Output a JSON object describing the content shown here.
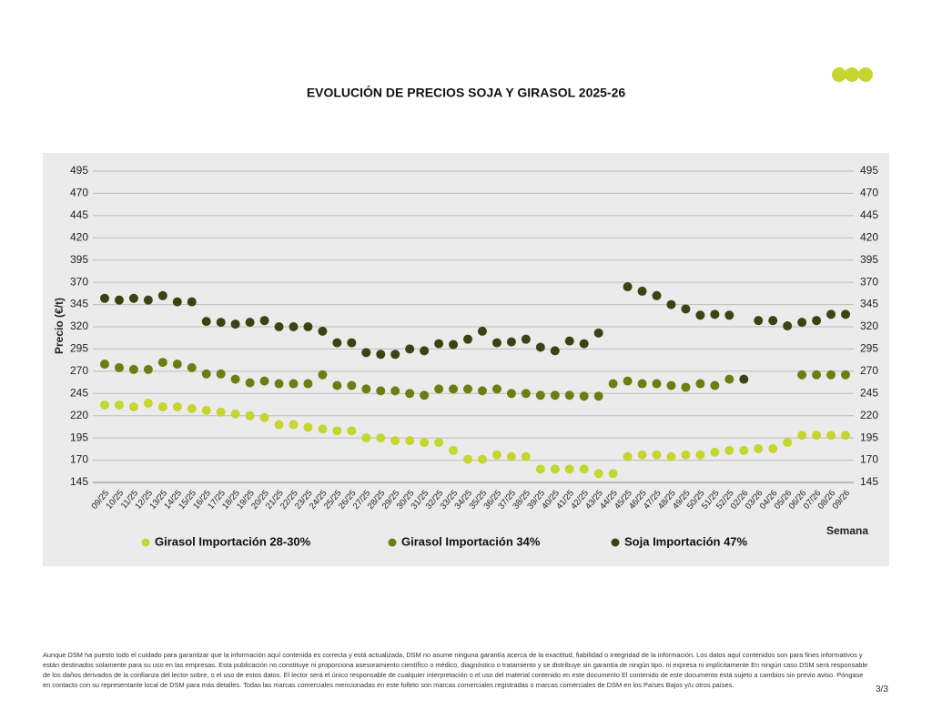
{
  "chart_data": {
    "type": "scatter",
    "title": "EVOLUCIÓN DE PRECIOS SOJA Y GIRASOL 2025-26",
    "y_label": "Precio (€/t)",
    "x_label": "Semana",
    "categories": [
      "09/25",
      "10/25",
      "11/25",
      "12/25",
      "13/25",
      "14/25",
      "15/25",
      "16/25",
      "17/25",
      "18/25",
      "19/25",
      "20/25",
      "21/25",
      "22/25",
      "23/25",
      "24/25",
      "25/25",
      "26/25",
      "27/25",
      "28/25",
      "29/25",
      "30/25",
      "31/25",
      "32/25",
      "33/25",
      "34/25",
      "35/25",
      "36/25",
      "37/25",
      "38/25",
      "39/25",
      "40/25",
      "41/25",
      "42/25",
      "43/25",
      "44/25",
      "45/25",
      "46/25",
      "47/25",
      "48/25",
      "49/25",
      "50/25",
      "51/25",
      "52/25",
      "02/26",
      "03/26",
      "04/26",
      "05/26",
      "06/26",
      "07/26",
      "08/26",
      "09/26"
    ],
    "series": [
      {
        "name": "Girasol Importación 28-30%",
        "color": "#c5d631",
        "values": [
          232,
          232,
          230,
          234,
          230,
          230,
          228,
          226,
          224,
          222,
          220,
          218,
          210,
          210,
          207,
          205,
          203,
          203,
          195,
          195,
          192,
          192,
          190,
          190,
          181,
          171,
          171,
          176,
          174,
          174,
          160,
          160,
          160,
          160,
          155,
          155,
          174,
          176,
          176,
          174,
          176,
          176,
          179,
          181,
          181,
          183,
          183,
          190,
          198,
          198,
          198,
          198
        ]
      },
      {
        "name": "Girasol Importación 34%",
        "color": "#6e7d12",
        "values": [
          278,
          274,
          272,
          272,
          280,
          278,
          274,
          267,
          267,
          261,
          257,
          259,
          256,
          256,
          256,
          266,
          254,
          254,
          250,
          248,
          248,
          245,
          243,
          250,
          250,
          250,
          248,
          250,
          245,
          245,
          243,
          243,
          243,
          242,
          242,
          256,
          259,
          256,
          256,
          254,
          252,
          256,
          254,
          261,
          null,
          null,
          null,
          null,
          266,
          266,
          266,
          266
        ]
      },
      {
        "name": "Soja Importación 47%",
        "color": "#3a4311",
        "values": [
          352,
          350,
          352,
          350,
          355,
          348,
          348,
          326,
          325,
          323,
          325,
          327,
          320,
          320,
          320,
          315,
          302,
          302,
          291,
          289,
          289,
          295,
          293,
          301,
          300,
          306,
          315,
          302,
          303,
          306,
          297,
          293,
          304,
          301,
          313,
          null,
          365,
          360,
          355,
          345,
          340,
          333,
          334,
          333,
          261,
          327,
          327,
          321,
          325,
          327,
          334,
          334
        ]
      }
    ],
    "ylim": [
      145,
      495
    ],
    "yticks": [
      145,
      170,
      195,
      220,
      245,
      270,
      295,
      320,
      345,
      370,
      395,
      420,
      445,
      470,
      495
    ],
    "y2lim": [
      145,
      495
    ],
    "y2ticks": [
      145,
      170,
      195,
      220,
      245,
      270,
      295,
      320,
      345,
      370,
      395,
      420,
      445,
      470,
      495
    ],
    "grid": true
  },
  "footer": {
    "disclaimer": "Aunque DSM ha puesto todo el cuidado para garantizar que la información aquí contenida es correcta y está actualizada, DSM no asume ninguna garantía acerca de la exactitud, fiabilidad o integridad de la información. Los datos aquí contenidos son para fines informativos y están destinados solamente para su uso en las empresas. Esta publicación no constituye ni proporciona asesoramiento científico o médico, diagnóstico o tratamiento y se distribuye sin garantía de ningún tipo, ni expresa ni implícitamente En ningún caso DSM será responsable de los daños derivados de la confianza del lector sobre, o el uso de estos datos. El lector será el único responsable de cualquier interpretación o el uso del material contenido en este documento El contenido de este documento está sujeto a cambios sin previo aviso. Póngase en contacto con su representante local de DSM para más detalles. Todas las marcas comerciales mencionadas en este folleto son marcas comerciales registradas o marcas comerciales de DSM en los Países Bajos y/u otros países.",
    "page": "3/3"
  }
}
